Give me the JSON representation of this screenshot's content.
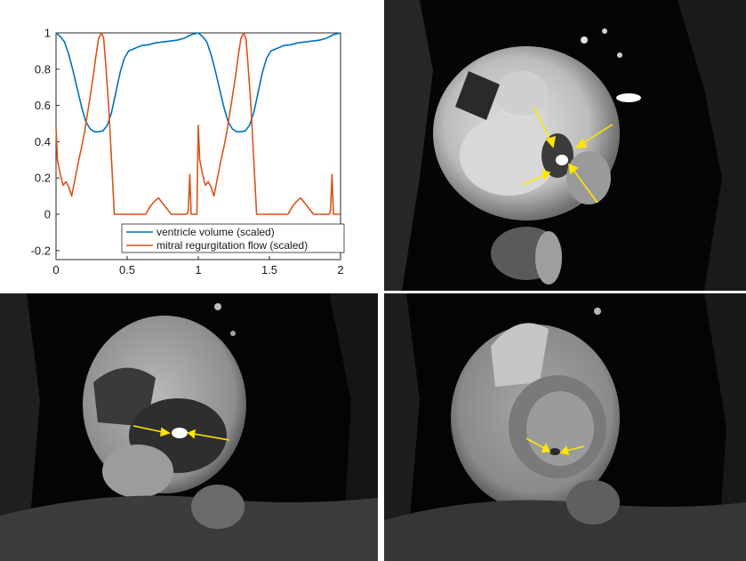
{
  "chart_data": {
    "type": "line",
    "xlim": [
      0,
      2
    ],
    "ylim": [
      -0.25,
      1
    ],
    "x_ticks": [
      "0",
      "0.5",
      "1",
      "1.5",
      "2"
    ],
    "y_ticks": [
      "1",
      "0.8",
      "0.6",
      "0.4",
      "0.2",
      "0",
      "-0.2"
    ],
    "x_tick_values": [
      0,
      0.5,
      1,
      1.5,
      2
    ],
    "y_tick_values": [
      1,
      0.8,
      0.6,
      0.4,
      0.2,
      0,
      -0.2
    ],
    "grid": false,
    "legend_position": "bottom-right",
    "series": [
      {
        "name": "ventricle volume (scaled)",
        "color": "#0072BD",
        "x": [
          0,
          0.03,
          0.06,
          0.09,
          0.12,
          0.15,
          0.18,
          0.21,
          0.24,
          0.27,
          0.3,
          0.33,
          0.36,
          0.39,
          0.42,
          0.45,
          0.48,
          0.51,
          0.54,
          0.57,
          0.6,
          0.65,
          0.7,
          0.75,
          0.8,
          0.85,
          0.9,
          0.95,
          1.0,
          1.03,
          1.06,
          1.09,
          1.12,
          1.15,
          1.18,
          1.21,
          1.24,
          1.27,
          1.3,
          1.33,
          1.36,
          1.39,
          1.42,
          1.45,
          1.48,
          1.51,
          1.54,
          1.57,
          1.6,
          1.65,
          1.7,
          1.75,
          1.8,
          1.85,
          1.9,
          1.95,
          2.0
        ],
        "y": [
          1.0,
          0.98,
          0.95,
          0.88,
          0.79,
          0.69,
          0.59,
          0.51,
          0.47,
          0.455,
          0.455,
          0.46,
          0.49,
          0.56,
          0.67,
          0.78,
          0.86,
          0.9,
          0.91,
          0.92,
          0.93,
          0.935,
          0.945,
          0.95,
          0.955,
          0.96,
          0.97,
          0.99,
          1.0,
          0.98,
          0.95,
          0.88,
          0.79,
          0.69,
          0.59,
          0.51,
          0.47,
          0.455,
          0.455,
          0.46,
          0.49,
          0.56,
          0.67,
          0.78,
          0.86,
          0.9,
          0.91,
          0.92,
          0.93,
          0.935,
          0.945,
          0.95,
          0.955,
          0.96,
          0.97,
          0.99,
          1.0
        ]
      },
      {
        "name": "mitral regurgitation flow (scaled)",
        "color": "#D95319",
        "x": [
          0,
          0.01,
          0.03,
          0.05,
          0.07,
          0.09,
          0.11,
          0.14,
          0.16,
          0.18,
          0.2,
          0.22,
          0.24,
          0.26,
          0.28,
          0.3,
          0.32,
          0.335,
          0.35,
          0.37,
          0.39,
          0.41,
          0.43,
          0.45,
          0.5,
          0.55,
          0.6,
          0.63,
          0.66,
          0.69,
          0.72,
          0.75,
          0.78,
          0.81,
          0.84,
          0.87,
          0.9,
          0.92,
          0.93,
          0.94,
          0.95,
          0.96,
          0.97,
          0.98,
          0.99,
          1.0,
          1.01,
          1.03,
          1.05,
          1.07,
          1.09,
          1.11,
          1.14,
          1.16,
          1.18,
          1.2,
          1.22,
          1.24,
          1.26,
          1.28,
          1.3,
          1.32,
          1.335,
          1.35,
          1.37,
          1.39,
          1.41,
          1.43,
          1.45,
          1.5,
          1.55,
          1.6,
          1.63,
          1.66,
          1.69,
          1.72,
          1.75,
          1.78,
          1.81,
          1.84,
          1.87,
          1.9,
          1.92,
          1.93,
          1.94,
          1.95,
          1.96,
          1.97,
          1.98,
          1.99,
          2.0
        ],
        "y": [
          0.48,
          0.3,
          0.22,
          0.16,
          0.18,
          0.15,
          0.1,
          0.22,
          0.3,
          0.37,
          0.45,
          0.55,
          0.65,
          0.75,
          0.87,
          0.97,
          1.0,
          0.97,
          0.82,
          0.6,
          0.3,
          0.0,
          0.0,
          0.0,
          0.0,
          0.0,
          0.0,
          0.0,
          0.04,
          0.07,
          0.09,
          0.06,
          0.03,
          0.0,
          0.0,
          0.0,
          0.0,
          0.0,
          0.02,
          0.22,
          0.0,
          0.0,
          0.0,
          0.0,
          0.0,
          0.49,
          0.3,
          0.22,
          0.16,
          0.18,
          0.15,
          0.1,
          0.22,
          0.3,
          0.37,
          0.45,
          0.55,
          0.65,
          0.75,
          0.87,
          0.97,
          1.0,
          0.97,
          0.82,
          0.6,
          0.3,
          0.0,
          0.0,
          0.0,
          0.0,
          0.0,
          0.0,
          0.0,
          0.04,
          0.07,
          0.09,
          0.06,
          0.03,
          0.0,
          0.0,
          0.0,
          0.0,
          0.0,
          0.02,
          0.22,
          0.0,
          0.0,
          0.0,
          0.0,
          0.0,
          0.0
        ]
      }
    ]
  },
  "mri_panels": [
    {
      "name": "mri-top-right",
      "arrow_color": "#FFE600"
    },
    {
      "name": "mri-bottom-left",
      "arrow_color": "#FFE600"
    },
    {
      "name": "mri-bottom-right",
      "arrow_color": "#FFE600"
    }
  ]
}
